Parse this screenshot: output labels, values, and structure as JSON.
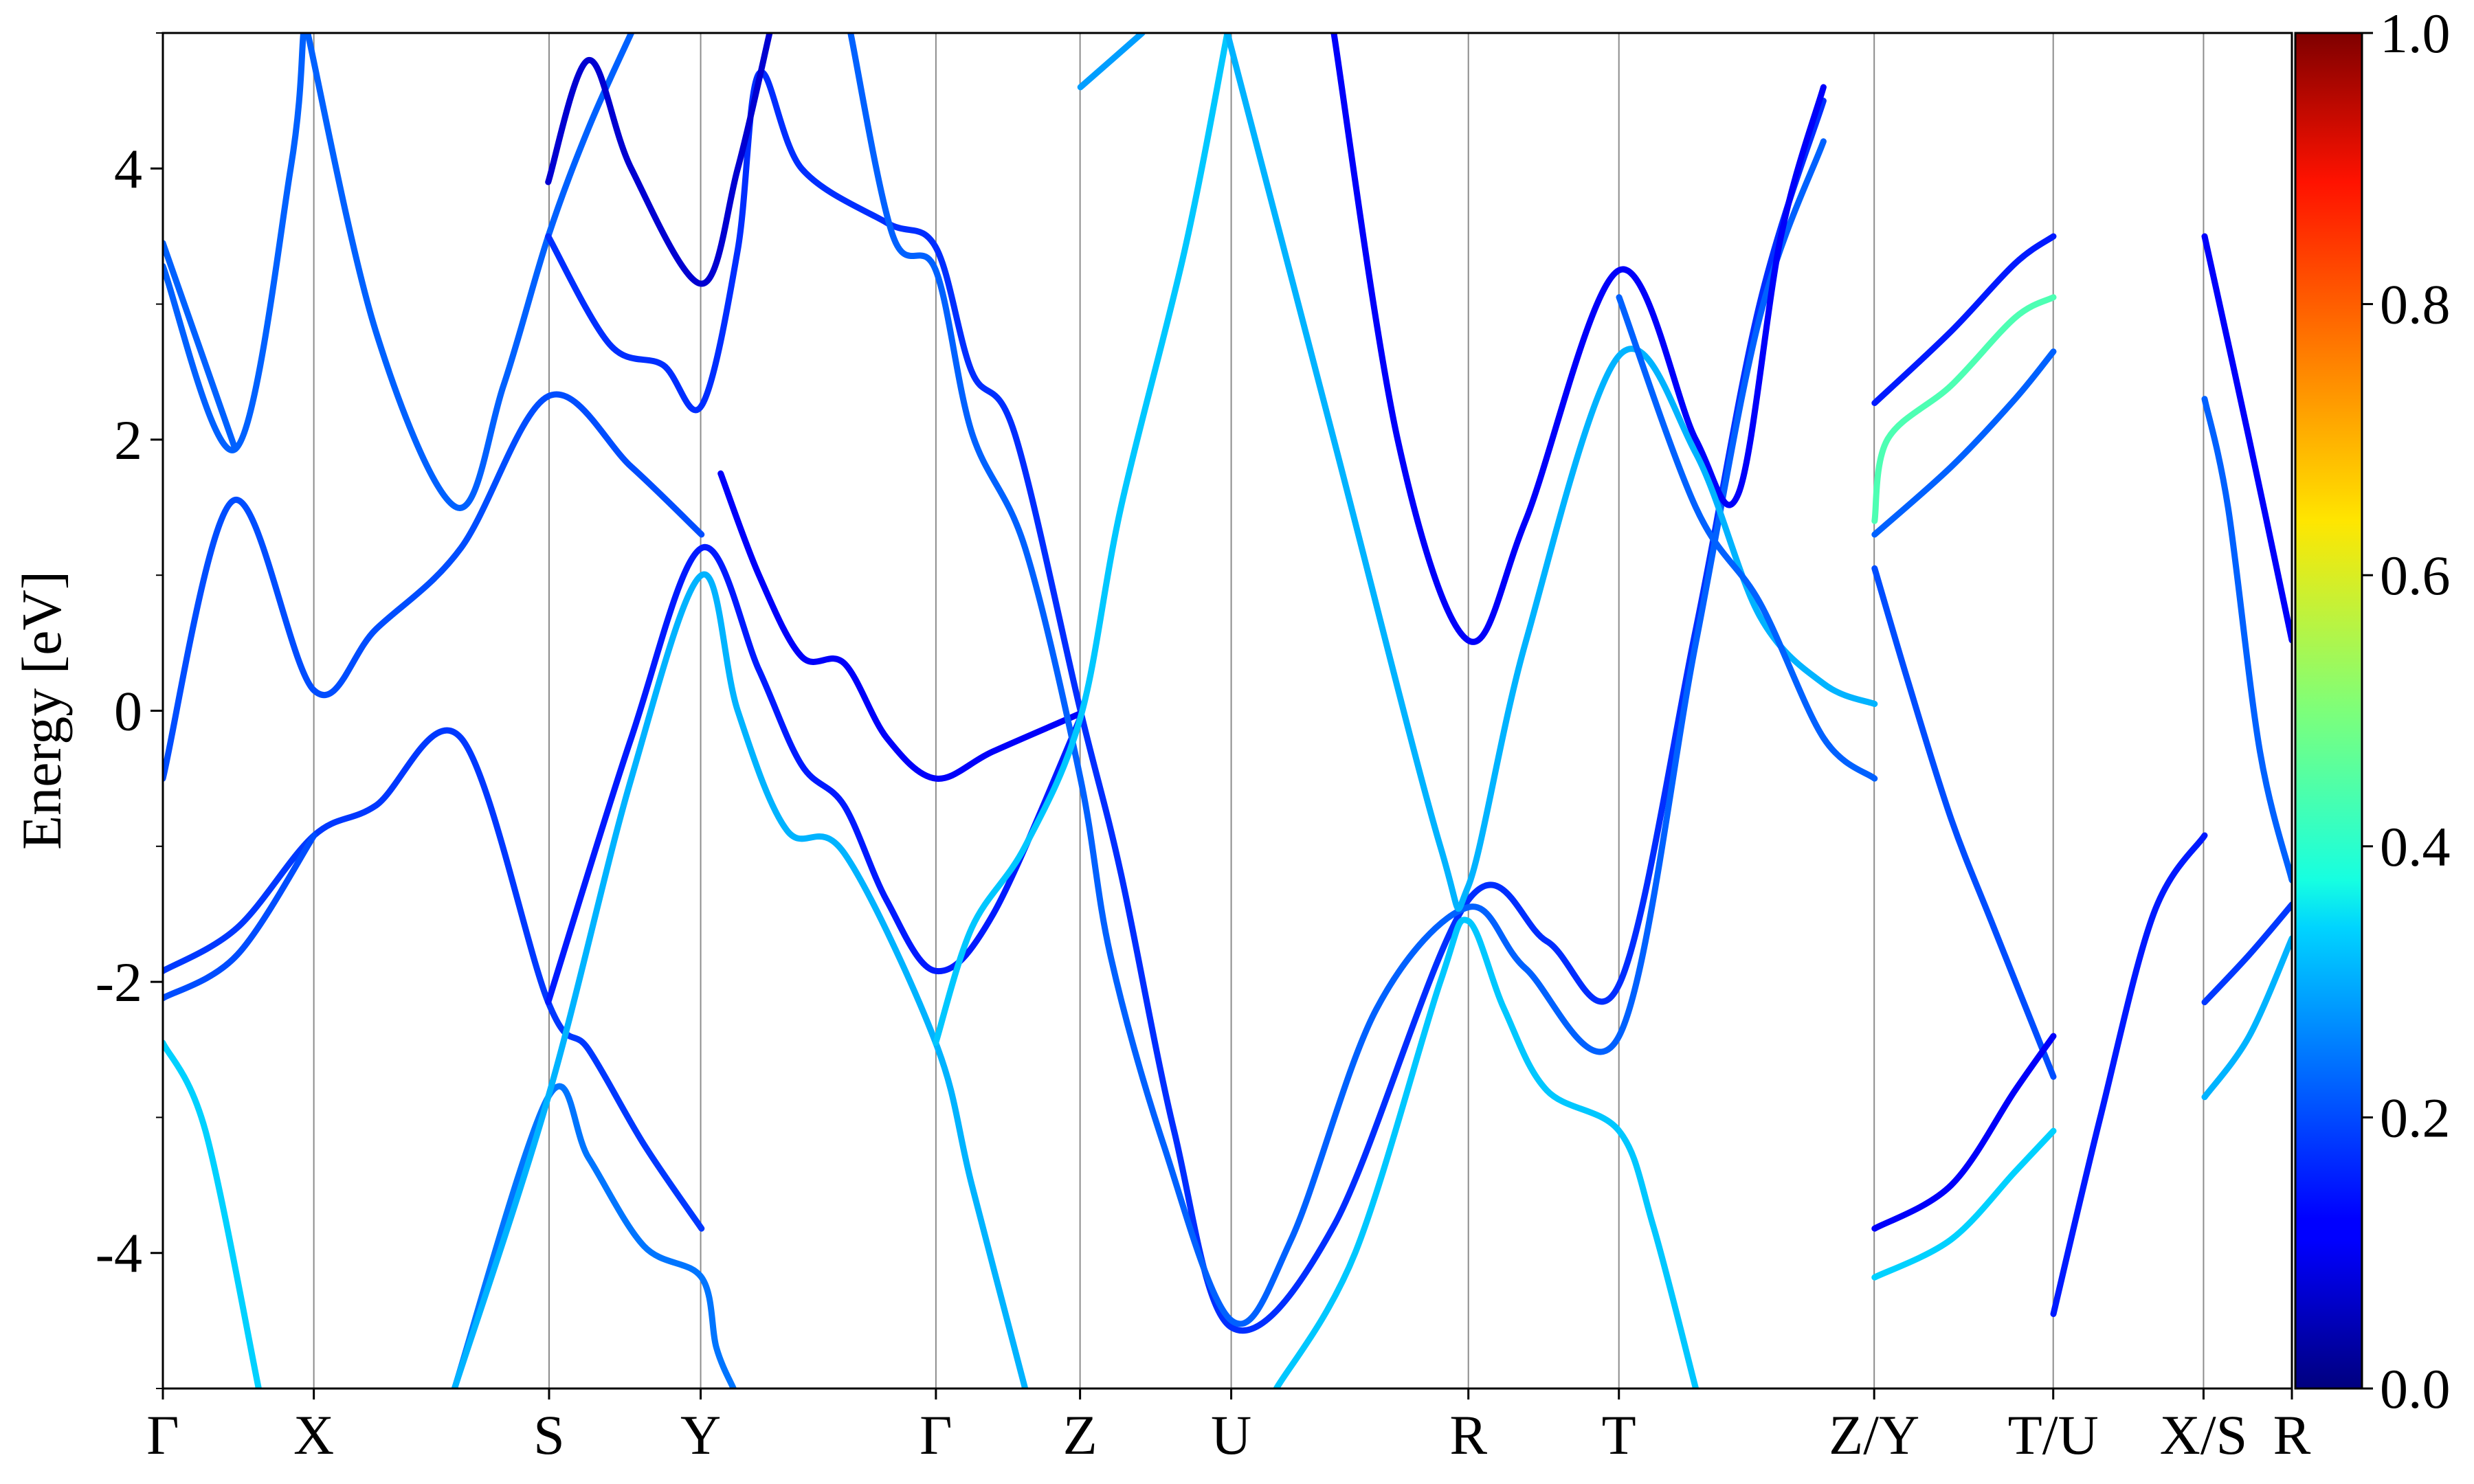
{
  "chart_data": {
    "type": "line",
    "title": "",
    "xlabel": "",
    "ylabel": "Energy [eV]",
    "ylim": [
      -5,
      5
    ],
    "y_ticks": [
      4,
      2,
      0,
      -2,
      -4
    ],
    "y_tick_labels": [
      "4",
      "2",
      "0",
      "-2",
      "-4"
    ],
    "k_points": [
      {
        "label": "Γ",
        "k": 0.0
      },
      {
        "label": "X",
        "k": 0.0709
      },
      {
        "label": "S",
        "k": 0.1814
      },
      {
        "label": "Y",
        "k": 0.2526
      },
      {
        "label": "Γ",
        "k": 0.3631
      },
      {
        "label": "Z",
        "k": 0.4308
      },
      {
        "label": "U",
        "k": 0.5018
      },
      {
        "label": "R",
        "k": 0.6132
      },
      {
        "label": "T",
        "k": 0.6839
      },
      {
        "label": "Z/Y",
        "k": 0.8038
      },
      {
        "label": "T/U",
        "k": 0.8879
      },
      {
        "label": "X/S",
        "k": 0.9585
      },
      {
        "label": "R",
        "k": 1.0
      }
    ],
    "colorbar": {
      "colormap": "jet",
      "range": [
        0.0,
        1.0
      ],
      "ticks": [
        "0.0",
        "0.2",
        "0.4",
        "0.6",
        "0.8",
        "1.0"
      ]
    },
    "grid": "vertical lines at high-symmetry points",
    "series": [
      {
        "weight": 0.18,
        "points": [
          [
            0.0,
            -1.92
          ],
          [
            0.035,
            -1.6
          ],
          [
            0.071,
            -0.92
          ],
          [
            0.1,
            -0.7
          ],
          [
            0.14,
            -0.2
          ],
          [
            0.181,
            -2.15
          ],
          [
            0.2,
            -2.5
          ],
          [
            0.226,
            -3.2
          ],
          [
            0.253,
            -3.82
          ]
        ]
      },
      {
        "weight": 0.2,
        "points": [
          [
            0.0,
            -2.12
          ],
          [
            0.035,
            -1.8
          ],
          [
            0.071,
            -0.92
          ]
        ]
      },
      {
        "weight": 0.33,
        "points": [
          [
            0.0,
            -2.45
          ],
          [
            0.02,
            -3.1
          ],
          [
            0.045,
            -5.0
          ]
        ]
      },
      {
        "weight": 0.2,
        "points": [
          [
            0.0,
            -0.5
          ],
          [
            0.033,
            1.55
          ],
          [
            0.071,
            0.15
          ],
          [
            0.1,
            0.6
          ],
          [
            0.14,
            1.2
          ],
          [
            0.181,
            2.32
          ],
          [
            0.22,
            1.8
          ],
          [
            0.253,
            1.3
          ]
        ]
      },
      {
        "weight": 0.22,
        "points": [
          [
            0.0,
            3.28
          ],
          [
            0.034,
            1.93
          ],
          [
            0.06,
            4.0
          ],
          [
            0.066,
            5.0
          ]
        ]
      },
      {
        "weight": 0.22,
        "points": [
          [
            0.0,
            3.45
          ],
          [
            0.034,
            1.93
          ]
        ]
      },
      {
        "weight": 0.22,
        "points": [
          [
            0.068,
            5.0
          ],
          [
            0.1,
            2.8
          ],
          [
            0.138,
            1.5
          ],
          [
            0.16,
            2.4
          ],
          [
            0.181,
            3.5
          ],
          [
            0.2,
            4.3
          ],
          [
            0.22,
            5.0
          ]
        ]
      },
      {
        "weight": 0.24,
        "points": [
          [
            0.137,
            -5.0
          ],
          [
            0.181,
            -2.85
          ],
          [
            0.2,
            -3.3
          ],
          [
            0.226,
            -3.95
          ],
          [
            0.253,
            -4.18
          ],
          [
            0.26,
            -4.7
          ],
          [
            0.268,
            -5.0
          ]
        ]
      },
      {
        "weight": 0.3,
        "points": [
          [
            0.137,
            -5.0
          ],
          [
            0.181,
            -2.85
          ],
          [
            0.22,
            -0.5
          ],
          [
            0.253,
            1.0
          ],
          [
            0.27,
            0.0
          ],
          [
            0.293,
            -0.88
          ],
          [
            0.32,
            -1.05
          ],
          [
            0.363,
            -2.45
          ],
          [
            0.38,
            -3.5
          ],
          [
            0.405,
            -5.0
          ]
        ]
      },
      {
        "weight": 0.15,
        "points": [
          [
            0.181,
            -2.15
          ],
          [
            0.22,
            -0.2
          ],
          [
            0.253,
            1.2
          ],
          [
            0.28,
            0.3
          ],
          [
            0.3,
            -0.4
          ],
          [
            0.32,
            -0.7
          ],
          [
            0.34,
            -1.4
          ],
          [
            0.363,
            -1.92
          ],
          [
            0.39,
            -1.5
          ],
          [
            0.431,
            -0.05
          ]
        ]
      },
      {
        "weight": 0.17,
        "points": [
          [
            0.181,
            3.5
          ],
          [
            0.21,
            2.7
          ],
          [
            0.235,
            2.55
          ],
          [
            0.253,
            2.25
          ],
          [
            0.27,
            3.4
          ],
          [
            0.28,
            4.7
          ],
          [
            0.3,
            4.0
          ],
          [
            0.34,
            3.6
          ],
          [
            0.363,
            3.42
          ],
          [
            0.38,
            2.5
          ],
          [
            0.4,
            2.05
          ],
          [
            0.431,
            0.0
          ],
          [
            0.45,
            -1.2
          ],
          [
            0.475,
            -3.1
          ],
          [
            0.502,
            -4.55
          ],
          [
            0.55,
            -3.8
          ],
          [
            0.613,
            -1.4
          ],
          [
            0.65,
            -1.7
          ],
          [
            0.684,
            -2.02
          ],
          [
            0.72,
            0.6
          ],
          [
            0.75,
            3.0
          ],
          [
            0.78,
            4.5
          ]
        ]
      },
      {
        "weight": 0.08,
        "points": [
          [
            0.181,
            3.9
          ],
          [
            0.2,
            4.8
          ],
          [
            0.22,
            4.0
          ],
          [
            0.253,
            3.15
          ],
          [
            0.27,
            4.0
          ],
          [
            0.285,
            5.0
          ]
        ]
      },
      {
        "weight": 0.12,
        "points": [
          [
            0.262,
            1.75
          ],
          [
            0.28,
            1.0
          ],
          [
            0.3,
            0.4
          ],
          [
            0.32,
            0.35
          ],
          [
            0.34,
            -0.2
          ],
          [
            0.363,
            -0.5
          ],
          [
            0.39,
            -0.3
          ],
          [
            0.431,
            -0.02
          ]
        ]
      },
      {
        "weight": 0.22,
        "points": [
          [
            0.323,
            5.0
          ],
          [
            0.343,
            3.5
          ],
          [
            0.363,
            3.25
          ],
          [
            0.38,
            2.05
          ],
          [
            0.405,
            1.2
          ],
          [
            0.431,
            -0.5
          ],
          [
            0.445,
            -1.8
          ],
          [
            0.47,
            -3.2
          ],
          [
            0.502,
            -4.5
          ],
          [
            0.53,
            -3.9
          ],
          [
            0.57,
            -2.2
          ],
          [
            0.613,
            -1.45
          ],
          [
            0.64,
            -1.9
          ],
          [
            0.684,
            -2.4
          ],
          [
            0.72,
            0.5
          ],
          [
            0.75,
            2.9
          ],
          [
            0.78,
            4.2
          ]
        ]
      },
      {
        "weight": 0.32,
        "points": [
          [
            0.363,
            -2.45
          ],
          [
            0.38,
            -1.6
          ],
          [
            0.405,
            -1.0
          ],
          [
            0.431,
            -0.05
          ],
          [
            0.45,
            1.5
          ],
          [
            0.48,
            3.4
          ],
          [
            0.5,
            5.0
          ]
        ]
      },
      {
        "weight": 0.28,
        "points": [
          [
            0.431,
            4.6
          ],
          [
            0.46,
            5.0
          ]
        ]
      },
      {
        "weight": 0.32,
        "points": [
          [
            0.523,
            -5.0
          ],
          [
            0.56,
            -4.0
          ],
          [
            0.6,
            -2.0
          ],
          [
            0.613,
            -1.55
          ],
          [
            0.63,
            -2.2
          ],
          [
            0.65,
            -2.8
          ],
          [
            0.684,
            -3.1
          ],
          [
            0.7,
            -3.8
          ],
          [
            0.72,
            -5.0
          ]
        ]
      },
      {
        "weight": 0.12,
        "points": [
          [
            0.55,
            5.0
          ],
          [
            0.58,
            2.0
          ],
          [
            0.613,
            0.52
          ],
          [
            0.64,
            1.4
          ],
          [
            0.684,
            3.25
          ],
          [
            0.72,
            2.0
          ],
          [
            0.74,
            1.6
          ],
          [
            0.76,
            3.5
          ],
          [
            0.78,
            4.6
          ]
        ]
      },
      {
        "weight": 0.3,
        "points": [
          [
            0.5,
            5.0
          ],
          [
            0.55,
            2.0
          ],
          [
            0.6,
            -1.0
          ],
          [
            0.613,
            -1.3
          ],
          [
            0.64,
            0.5
          ],
          [
            0.684,
            2.62
          ],
          [
            0.72,
            1.9
          ],
          [
            0.75,
            0.7
          ],
          [
            0.78,
            0.2
          ],
          [
            0.804,
            0.05
          ]
        ]
      },
      {
        "weight": 0.22,
        "points": [
          [
            0.684,
            3.05
          ],
          [
            0.72,
            1.5
          ],
          [
            0.75,
            0.8
          ],
          [
            0.78,
            -0.2
          ],
          [
            0.804,
            -0.5
          ]
        ]
      },
      {
        "weight": 0.45,
        "points": [
          [
            0.804,
            1.4
          ],
          [
            0.81,
            2.0
          ],
          [
            0.84,
            2.4
          ],
          [
            0.87,
            2.9
          ],
          [
            0.888,
            3.05
          ]
        ]
      },
      {
        "weight": 0.22,
        "points": [
          [
            0.804,
            1.3
          ],
          [
            0.84,
            1.8
          ],
          [
            0.87,
            2.3
          ],
          [
            0.888,
            2.65
          ]
        ]
      },
      {
        "weight": 0.2,
        "points": [
          [
            0.804,
            1.05
          ],
          [
            0.82,
            0.2
          ],
          [
            0.84,
            -0.8
          ],
          [
            0.86,
            -1.6
          ],
          [
            0.888,
            -2.7
          ]
        ]
      },
      {
        "weight": 0.15,
        "points": [
          [
            0.804,
            2.27
          ],
          [
            0.84,
            2.8
          ],
          [
            0.87,
            3.3
          ],
          [
            0.888,
            3.5
          ]
        ]
      },
      {
        "weight": 0.12,
        "points": [
          [
            0.804,
            -3.82
          ],
          [
            0.84,
            -3.5
          ],
          [
            0.87,
            -2.8
          ],
          [
            0.888,
            -2.4
          ]
        ]
      },
      {
        "weight": 0.33,
        "points": [
          [
            0.804,
            -4.18
          ],
          [
            0.84,
            -3.9
          ],
          [
            0.87,
            -3.4
          ],
          [
            0.888,
            -3.1
          ]
        ]
      },
      {
        "weight": 0.15,
        "points": [
          [
            0.888,
            -4.45
          ],
          [
            0.91,
            -3.0
          ],
          [
            0.935,
            -1.5
          ],
          [
            0.959,
            -0.92
          ]
        ]
      },
      {
        "weight": 0.22,
        "points": [
          [
            0.959,
            2.3
          ],
          [
            0.97,
            1.5
          ],
          [
            0.985,
            -0.3
          ],
          [
            1.0,
            -1.25
          ]
        ]
      },
      {
        "weight": 0.12,
        "points": [
          [
            0.959,
            3.5
          ],
          [
            0.98,
            2.0
          ],
          [
            1.0,
            0.52
          ]
        ]
      },
      {
        "weight": 0.18,
        "points": [
          [
            0.959,
            -2.15
          ],
          [
            0.98,
            -1.8
          ],
          [
            1.0,
            -1.43
          ]
        ]
      },
      {
        "weight": 0.3,
        "points": [
          [
            0.959,
            -2.85
          ],
          [
            0.98,
            -2.4
          ],
          [
            1.0,
            -1.68
          ]
        ]
      }
    ]
  }
}
